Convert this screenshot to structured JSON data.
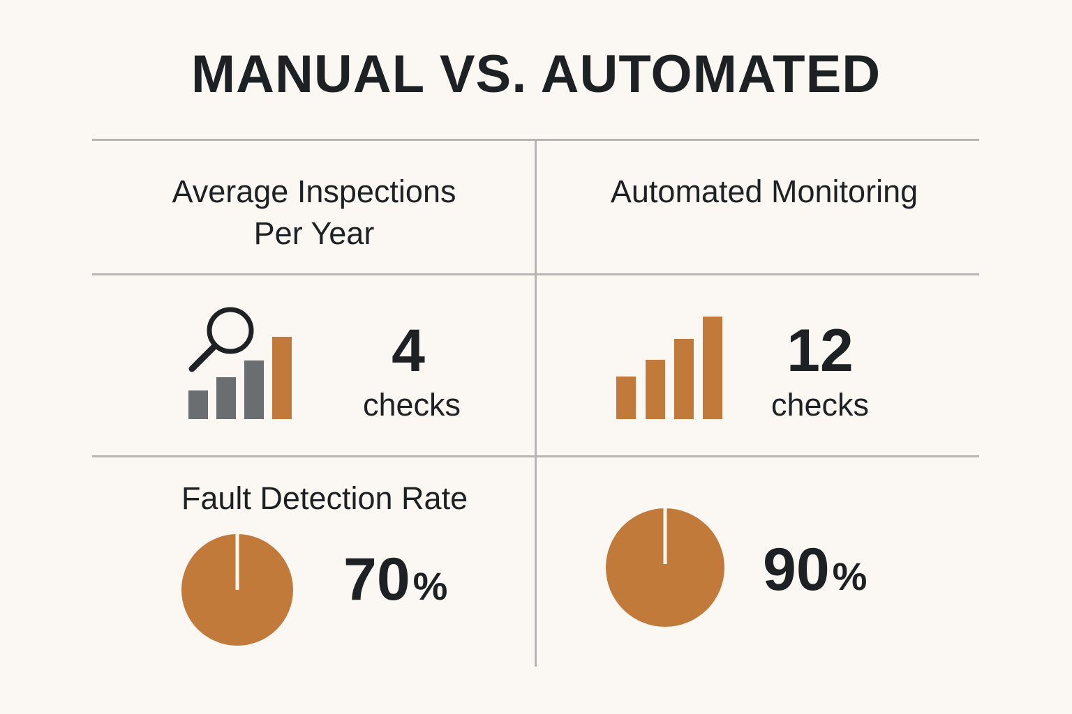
{
  "title": "MANUAL VS. AUTOMATED",
  "headings": {
    "inspections_line1": "Average Inspections",
    "inspections_line2": "Per Year",
    "automated": "Automated Monitoring",
    "fault_detection": "Fault Detection Rate"
  },
  "manual": {
    "checks_value": "4",
    "checks_unit": "checks",
    "rate_value": "70",
    "rate_unit": "%"
  },
  "automated": {
    "checks_value": "12",
    "checks_unit": "checks",
    "rate_value": "90",
    "rate_unit": "%"
  },
  "icons": {
    "manual_bars": "magnifier-bar-chart-icon",
    "automated_bars": "bar-chart-icon",
    "manual_pie": "pie-icon",
    "automated_pie": "pie-icon"
  },
  "colors": {
    "background": "#fbf8f4",
    "accent": "#c27a3b",
    "gray_bar": "#6b6e70",
    "text": "#1e2124",
    "divider": "#b5b5b5"
  },
  "chart_data": [
    {
      "type": "table",
      "title": "MANUAL VS. AUTOMATED",
      "columns": [
        "Average Inspections Per Year",
        "Automated Monitoring"
      ],
      "rows": [
        {
          "label": "Average Inspections Per Year",
          "values": [
            4,
            12
          ],
          "unit": "checks"
        },
        {
          "label": "Fault Detection Rate",
          "values": [
            70,
            90
          ],
          "unit": "%"
        }
      ]
    }
  ]
}
